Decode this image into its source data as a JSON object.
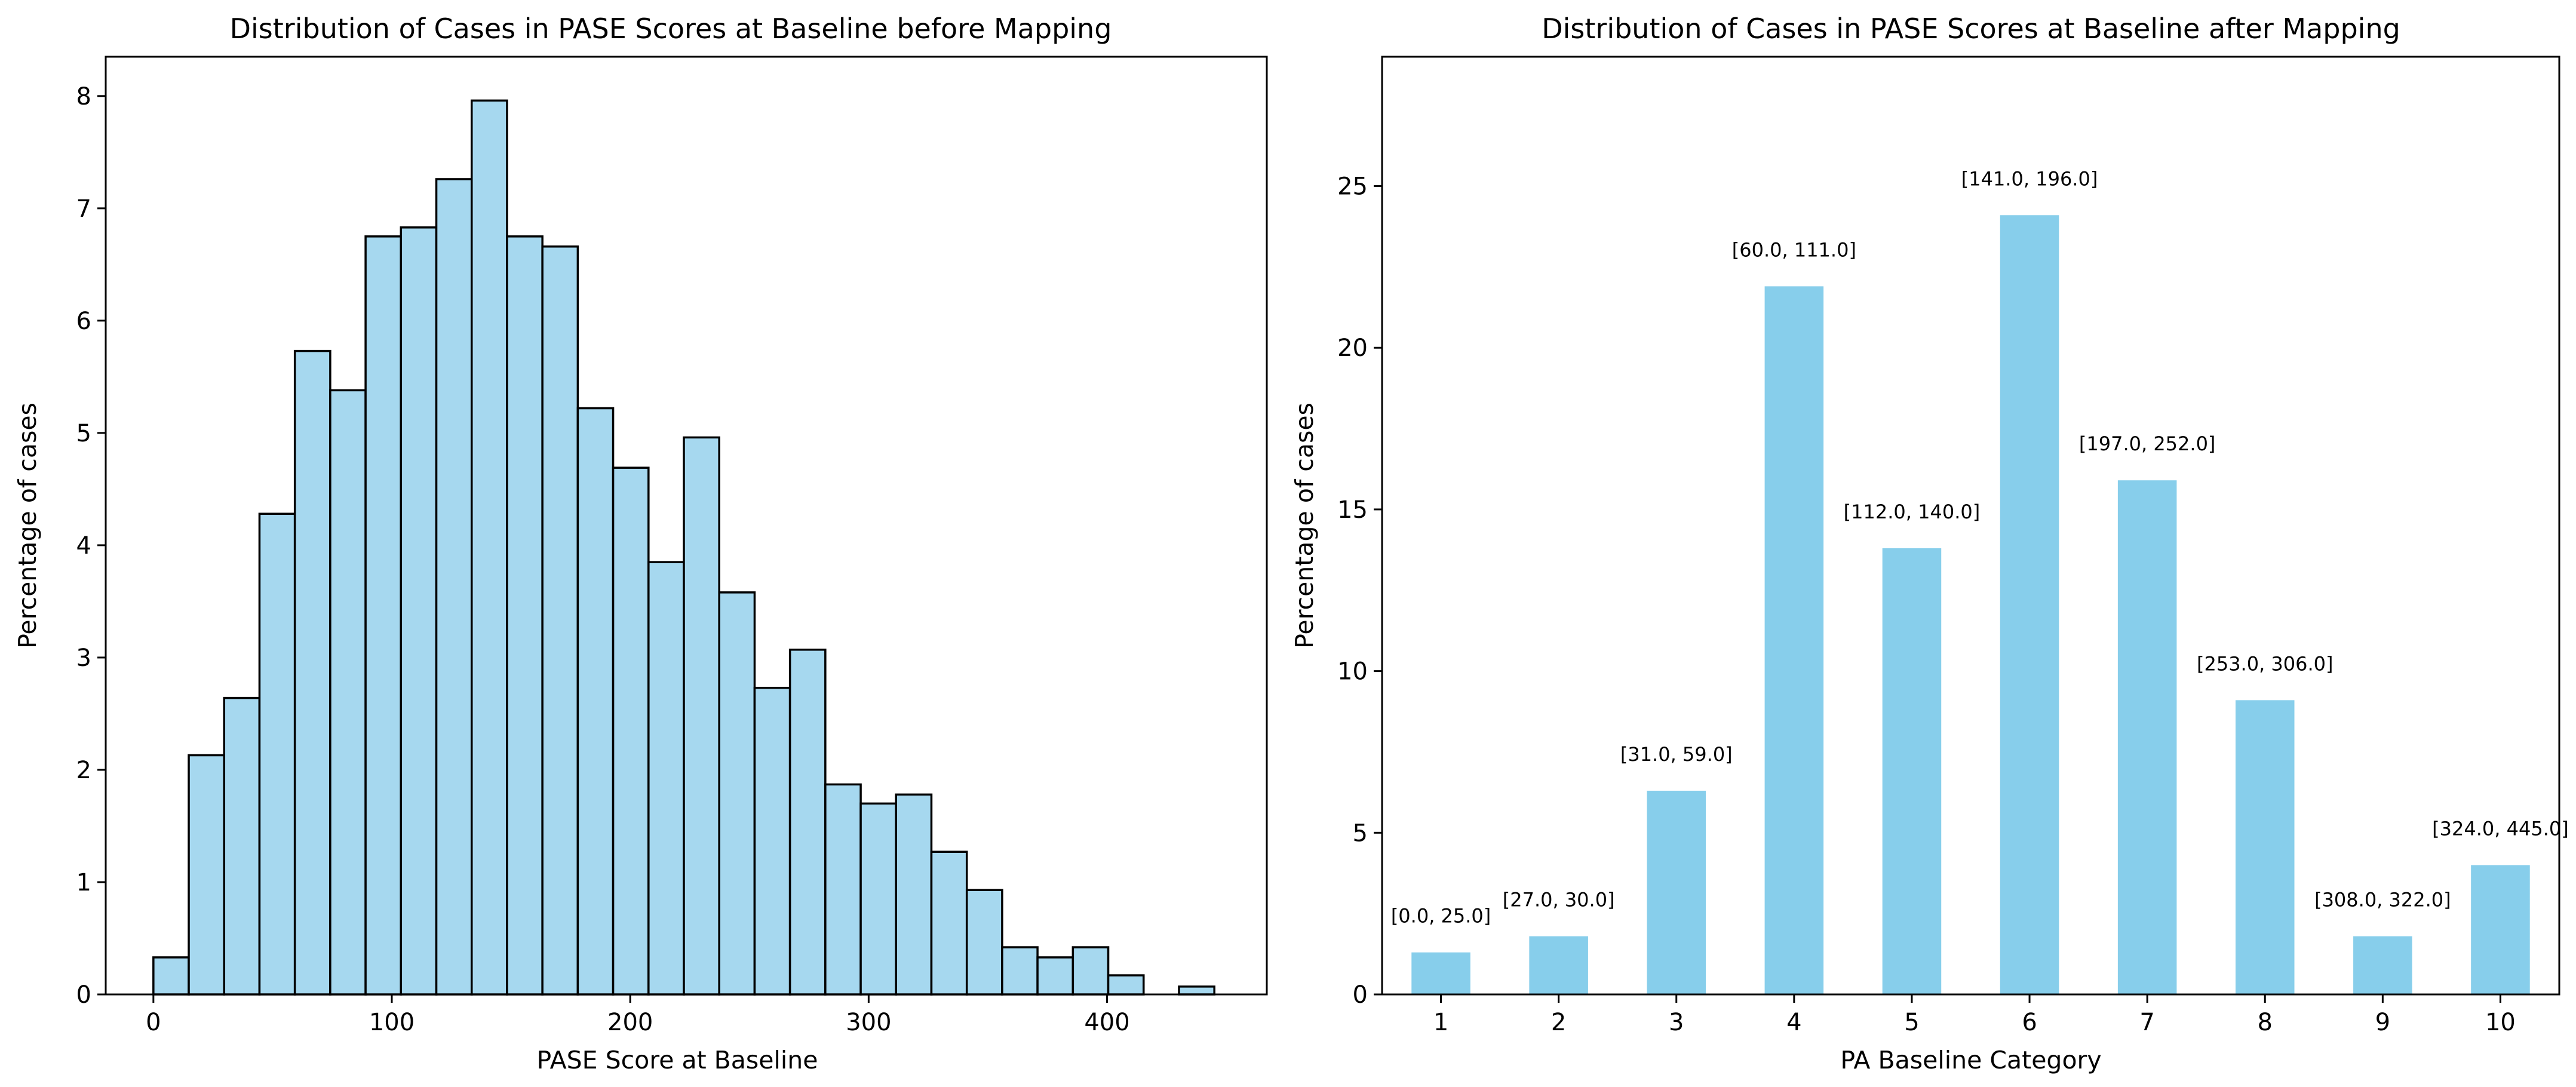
{
  "colors": {
    "bar_left": "#a6d8ef",
    "bar_right": "#87ceeb",
    "bar_edge": "#000000"
  },
  "chart_data": [
    {
      "type": "bar",
      "histogram": true,
      "title": "Distribution of Cases in PASE Scores at Baseline before Mapping",
      "xlabel": "PASE Score at Baseline",
      "ylabel": "Percentage of cases",
      "xlim": [
        -20,
        467
      ],
      "ylim": [
        0,
        8.35
      ],
      "xticks": [
        0,
        100,
        200,
        300,
        400
      ],
      "yticks": [
        0,
        1,
        2,
        3,
        4,
        5,
        6,
        7,
        8
      ],
      "bin_edges": [
        0,
        14.83,
        29.67,
        44.5,
        59.33,
        74.17,
        89,
        103.83,
        118.67,
        133.5,
        148.33,
        163.17,
        178,
        192.83,
        207.67,
        222.5,
        237.33,
        252.17,
        267,
        281.83,
        296.67,
        311.5,
        326.33,
        341.17,
        356,
        370.83,
        385.67,
        400.5,
        415.33,
        430.17,
        445
      ],
      "values": [
        0.33,
        2.13,
        2.64,
        4.28,
        5.73,
        5.38,
        6.75,
        6.83,
        7.26,
        7.96,
        6.75,
        6.66,
        5.22,
        4.69,
        3.85,
        4.96,
        3.58,
        2.73,
        3.07,
        1.87,
        1.7,
        1.78,
        1.27,
        0.93,
        0.42,
        0.33,
        0.42,
        0.17,
        0.0,
        0.07
      ]
    },
    {
      "type": "bar",
      "title": "Distribution of Cases in PASE Scores at Baseline after Mapping",
      "xlabel": "PA Baseline Category",
      "ylabel": "Percentage of cases",
      "ylim": [
        0,
        29
      ],
      "yticks": [
        0,
        5,
        10,
        15,
        20,
        25
      ],
      "categories": [
        "1",
        "2",
        "3",
        "4",
        "5",
        "6",
        "7",
        "8",
        "9",
        "10"
      ],
      "values": [
        1.3,
        1.8,
        6.3,
        21.9,
        13.8,
        24.1,
        15.9,
        9.1,
        1.8,
        4.0
      ],
      "annotations": [
        "[0.0, 25.0]",
        "[27.0, 30.0]",
        "[31.0, 59.0]",
        "[60.0, 111.0]",
        "[112.0, 140.0]",
        "[141.0, 196.0]",
        "[197.0, 252.0]",
        "[253.0, 306.0]",
        "[308.0, 322.0]",
        "[324.0, 445.0]"
      ]
    }
  ]
}
